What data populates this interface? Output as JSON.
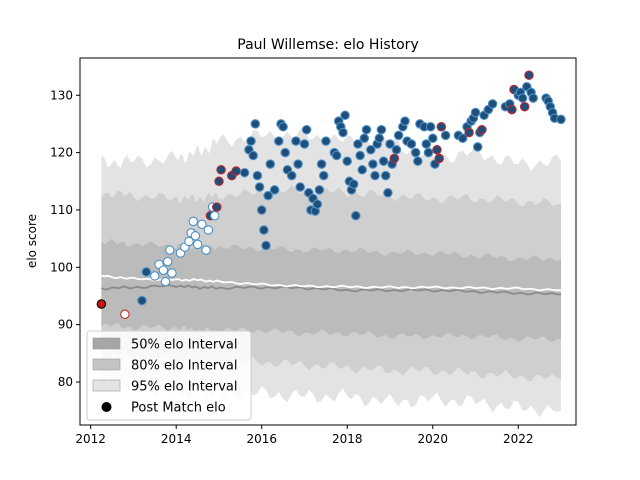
{
  "chart_data": {
    "type": "scatter",
    "title": "Paul Willemse: elo History",
    "xlabel": "",
    "ylabel": "elo score",
    "xlim": [
      2011.75,
      2023.35
    ],
    "ylim": [
      72.5,
      136.5
    ],
    "x_ticks": [
      2012,
      2014,
      2016,
      2018,
      2020,
      2022
    ],
    "x_tick_labels": [
      "2012",
      "2014",
      "2016",
      "2018",
      "2020",
      "2022"
    ],
    "y_ticks": [
      80,
      90,
      100,
      110,
      120,
      130
    ],
    "y_tick_labels": [
      "80",
      "90",
      "100",
      "110",
      "120",
      "130"
    ],
    "grid": false,
    "legend_position": "lower-left",
    "legend": [
      {
        "label": "50% elo Interval",
        "kind": "band",
        "color": "#a6a6a6"
      },
      {
        "label": "80% elo Interval",
        "kind": "band",
        "color": "#c4c4c4"
      },
      {
        "label": "95% elo Interval",
        "kind": "band",
        "color": "#e3e3e3"
      },
      {
        "label": "Post Match elo",
        "kind": "marker",
        "color": "#000000"
      }
    ],
    "colors": {
      "band95": "#e3e3e3",
      "band80": "#cfcfcf",
      "band50": "#bbbbbb",
      "median_line": "#8a8a8a",
      "white_line": "#ffffff",
      "point_fill_high": "#1f4e79",
      "point_fill_low": "#ffffff",
      "point_edge": "#4a90c8",
      "point_edge_win": "#c0282d"
    },
    "bands": {
      "x": [
        2012.25,
        2013.0,
        2014.0,
        2014.5,
        2015.0,
        2016.0,
        2017.0,
        2018.0,
        2019.0,
        2020.0,
        2021.0,
        2022.0,
        2023.0
      ],
      "p95_upper": [
        118.3,
        118.5,
        119.0,
        120.0,
        122.0,
        123.0,
        123.0,
        122.0,
        122.0,
        119.0,
        120.0,
        118.0,
        118.5
      ],
      "p95_lower": [
        80.5,
        79.5,
        78.0,
        78.0,
        78.0,
        78.0,
        77.5,
        77.5,
        76.5,
        77.0,
        76.5,
        75.5,
        75.0
      ],
      "p80_upper": [
        113.0,
        112.5,
        112.0,
        112.0,
        112.5,
        113.0,
        113.5,
        113.0,
        112.5,
        112.0,
        112.0,
        111.5,
        111.0
      ],
      "p80_lower": [
        85.0,
        84.5,
        84.0,
        84.0,
        83.5,
        83.5,
        83.0,
        82.5,
        82.0,
        82.0,
        81.5,
        81.0,
        80.5
      ],
      "p50_upper": [
        104.5,
        104.0,
        103.8,
        103.5,
        103.5,
        103.3,
        103.0,
        103.0,
        102.5,
        102.5,
        102.0,
        101.5,
        101.5
      ],
      "p50_lower": [
        90.0,
        89.5,
        89.5,
        89.0,
        89.0,
        89.0,
        88.5,
        88.5,
        88.0,
        88.0,
        88.0,
        87.5,
        87.5
      ],
      "median": [
        96.3,
        96.5,
        96.8,
        96.5,
        96.4,
        96.5,
        96.4,
        96.0,
        96.0,
        96.0,
        95.8,
        95.5,
        95.3
      ],
      "white_line": [
        98.5,
        98.0,
        97.8,
        97.8,
        97.5,
        97.0,
        96.7,
        96.6,
        96.5,
        96.5,
        96.4,
        96.3,
        96.0
      ]
    },
    "points": [
      [
        2012.25,
        93.6,
        "black",
        1
      ],
      [
        2012.8,
        91.8,
        "white",
        1
      ],
      [
        2013.2,
        94.2,
        "dark",
        0
      ],
      [
        2013.3,
        99.2,
        "dark",
        0
      ],
      [
        2013.5,
        98.5,
        "white",
        0
      ],
      [
        2013.6,
        100.5,
        "white",
        0
      ],
      [
        2013.7,
        99.5,
        "white",
        0
      ],
      [
        2013.75,
        97.5,
        "white",
        0
      ],
      [
        2013.8,
        101.0,
        "white",
        0
      ],
      [
        2013.85,
        103.0,
        "white",
        0
      ],
      [
        2013.9,
        99.0,
        "white",
        0
      ],
      [
        2014.1,
        102.5,
        "white",
        0
      ],
      [
        2014.2,
        103.5,
        "white",
        0
      ],
      [
        2014.3,
        104.5,
        "white",
        0
      ],
      [
        2014.35,
        106.0,
        "white",
        0
      ],
      [
        2014.4,
        108.0,
        "white",
        0
      ],
      [
        2014.45,
        105.5,
        "white",
        0
      ],
      [
        2014.5,
        104.0,
        "white",
        0
      ],
      [
        2014.6,
        107.5,
        "white",
        0
      ],
      [
        2014.7,
        103.0,
        "white",
        0
      ],
      [
        2014.75,
        106.5,
        "white",
        0
      ],
      [
        2014.8,
        109.0,
        "dark",
        1
      ],
      [
        2014.85,
        110.5,
        "white",
        0
      ],
      [
        2014.9,
        109.0,
        "white",
        0
      ],
      [
        2014.95,
        110.5,
        "dark",
        1
      ],
      [
        2015.0,
        115.0,
        "dark",
        1
      ],
      [
        2015.05,
        117.0,
        "dark",
        1
      ],
      [
        2015.3,
        116.0,
        "dark",
        1
      ],
      [
        2015.4,
        116.8,
        "dark",
        1
      ],
      [
        2015.6,
        116.5,
        "dark",
        0
      ],
      [
        2015.7,
        120.5,
        "dark",
        0
      ],
      [
        2015.75,
        122.0,
        "dark",
        0
      ],
      [
        2015.8,
        119.5,
        "dark",
        0
      ],
      [
        2015.85,
        125.0,
        "dark",
        0
      ],
      [
        2015.9,
        116.0,
        "dark",
        0
      ],
      [
        2015.95,
        114.0,
        "dark",
        0
      ],
      [
        2016.0,
        110.0,
        "dark",
        0
      ],
      [
        2016.05,
        106.5,
        "dark",
        0
      ],
      [
        2016.1,
        103.8,
        "dark",
        0
      ],
      [
        2016.15,
        112.5,
        "dark",
        0
      ],
      [
        2016.2,
        118.0,
        "dark",
        0
      ],
      [
        2016.3,
        113.5,
        "dark",
        0
      ],
      [
        2016.4,
        122.0,
        "dark",
        0
      ],
      [
        2016.45,
        125.0,
        "dark",
        0
      ],
      [
        2016.5,
        124.5,
        "dark",
        0
      ],
      [
        2016.55,
        120.0,
        "dark",
        0
      ],
      [
        2016.6,
        117.0,
        "dark",
        0
      ],
      [
        2016.7,
        116.0,
        "dark",
        0
      ],
      [
        2016.8,
        122.0,
        "dark",
        0
      ],
      [
        2016.85,
        118.0,
        "dark",
        0
      ],
      [
        2016.9,
        114.0,
        "dark",
        0
      ],
      [
        2017.0,
        121.5,
        "dark",
        0
      ],
      [
        2017.05,
        124.0,
        "dark",
        0
      ],
      [
        2017.1,
        113.0,
        "dark",
        0
      ],
      [
        2017.15,
        110.0,
        "dark",
        0
      ],
      [
        2017.2,
        112.0,
        "dark",
        0
      ],
      [
        2017.25,
        109.8,
        "dark",
        0
      ],
      [
        2017.3,
        111.0,
        "dark",
        0
      ],
      [
        2017.35,
        113.5,
        "dark",
        0
      ],
      [
        2017.4,
        118.0,
        "dark",
        0
      ],
      [
        2017.45,
        116.0,
        "dark",
        0
      ],
      [
        2017.5,
        122.0,
        "dark",
        0
      ],
      [
        2017.7,
        120.0,
        "dark",
        0
      ],
      [
        2017.75,
        119.5,
        "dark",
        0
      ],
      [
        2017.8,
        125.5,
        "dark",
        0
      ],
      [
        2017.85,
        124.5,
        "dark",
        0
      ],
      [
        2017.9,
        123.5,
        "dark",
        0
      ],
      [
        2017.95,
        126.5,
        "dark",
        0
      ],
      [
        2018.0,
        118.5,
        "dark",
        0
      ],
      [
        2018.05,
        115.0,
        "dark",
        0
      ],
      [
        2018.1,
        113.5,
        "dark",
        0
      ],
      [
        2018.15,
        114.5,
        "dark",
        0
      ],
      [
        2018.2,
        109.0,
        "dark",
        0
      ],
      [
        2018.25,
        121.5,
        "dark",
        0
      ],
      [
        2018.3,
        119.5,
        "dark",
        0
      ],
      [
        2018.35,
        117.0,
        "dark",
        0
      ],
      [
        2018.4,
        122.5,
        "dark",
        0
      ],
      [
        2018.45,
        124.0,
        "dark",
        0
      ],
      [
        2018.55,
        120.5,
        "dark",
        0
      ],
      [
        2018.6,
        118.0,
        "dark",
        0
      ],
      [
        2018.65,
        116.0,
        "dark",
        0
      ],
      [
        2018.7,
        121.5,
        "dark",
        0
      ],
      [
        2018.75,
        122.5,
        "dark",
        0
      ],
      [
        2018.8,
        124.0,
        "dark",
        0
      ],
      [
        2018.85,
        118.5,
        "dark",
        0
      ],
      [
        2018.9,
        116.0,
        "dark",
        0
      ],
      [
        2018.95,
        113.0,
        "dark",
        0
      ],
      [
        2019.0,
        121.5,
        "dark",
        0
      ],
      [
        2019.05,
        118.0,
        "dark",
        0
      ],
      [
        2019.1,
        119.0,
        "dark",
        1
      ],
      [
        2019.15,
        120.5,
        "dark",
        0
      ],
      [
        2019.2,
        123.0,
        "dark",
        0
      ],
      [
        2019.3,
        124.5,
        "dark",
        0
      ],
      [
        2019.35,
        125.5,
        "dark",
        0
      ],
      [
        2019.4,
        122.0,
        "dark",
        0
      ],
      [
        2019.5,
        121.5,
        "dark",
        0
      ],
      [
        2019.6,
        120.0,
        "dark",
        0
      ],
      [
        2019.65,
        118.5,
        "dark",
        0
      ],
      [
        2019.7,
        125.0,
        "dark",
        0
      ],
      [
        2019.8,
        124.5,
        "dark",
        0
      ],
      [
        2019.85,
        121.5,
        "dark",
        0
      ],
      [
        2019.9,
        120.0,
        "dark",
        0
      ],
      [
        2019.95,
        124.5,
        "dark",
        0
      ],
      [
        2020.0,
        122.5,
        "dark",
        0
      ],
      [
        2020.05,
        118.0,
        "dark",
        0
      ],
      [
        2020.1,
        120.5,
        "dark",
        1
      ],
      [
        2020.15,
        119.0,
        "dark",
        1
      ],
      [
        2020.2,
        124.5,
        "dark",
        1
      ],
      [
        2020.3,
        123.0,
        "dark",
        0
      ],
      [
        2020.6,
        123.0,
        "dark",
        0
      ],
      [
        2020.7,
        122.5,
        "dark",
        0
      ],
      [
        2020.8,
        124.5,
        "dark",
        0
      ],
      [
        2020.85,
        123.5,
        "dark",
        1
      ],
      [
        2020.9,
        125.5,
        "dark",
        0
      ],
      [
        2020.95,
        126.0,
        "dark",
        0
      ],
      [
        2021.0,
        127.0,
        "dark",
        0
      ],
      [
        2021.05,
        121.0,
        "dark",
        0
      ],
      [
        2021.1,
        123.5,
        "dark",
        0
      ],
      [
        2021.15,
        124.0,
        "dark",
        1
      ],
      [
        2021.2,
        126.5,
        "dark",
        0
      ],
      [
        2021.3,
        127.5,
        "dark",
        0
      ],
      [
        2021.4,
        128.5,
        "dark",
        0
      ],
      [
        2021.7,
        128.0,
        "dark",
        0
      ],
      [
        2021.8,
        128.5,
        "dark",
        0
      ],
      [
        2021.85,
        127.5,
        "dark",
        1
      ],
      [
        2021.9,
        131.0,
        "dark",
        1
      ],
      [
        2022.0,
        130.0,
        "dark",
        0
      ],
      [
        2022.05,
        130.5,
        "dark",
        0
      ],
      [
        2022.1,
        129.5,
        "dark",
        0
      ],
      [
        2022.15,
        128.0,
        "dark",
        1
      ],
      [
        2022.2,
        131.5,
        "dark",
        0
      ],
      [
        2022.25,
        133.5,
        "dark",
        1
      ],
      [
        2022.3,
        130.5,
        "dark",
        0
      ],
      [
        2022.35,
        129.5,
        "dark",
        0
      ],
      [
        2022.65,
        129.5,
        "dark",
        0
      ],
      [
        2022.7,
        129.0,
        "dark",
        0
      ],
      [
        2022.75,
        128.0,
        "dark",
        0
      ],
      [
        2022.8,
        127.0,
        "dark",
        0
      ],
      [
        2022.85,
        126.0,
        "dark",
        0
      ],
      [
        2023.0,
        125.8,
        "dark",
        0
      ]
    ]
  }
}
